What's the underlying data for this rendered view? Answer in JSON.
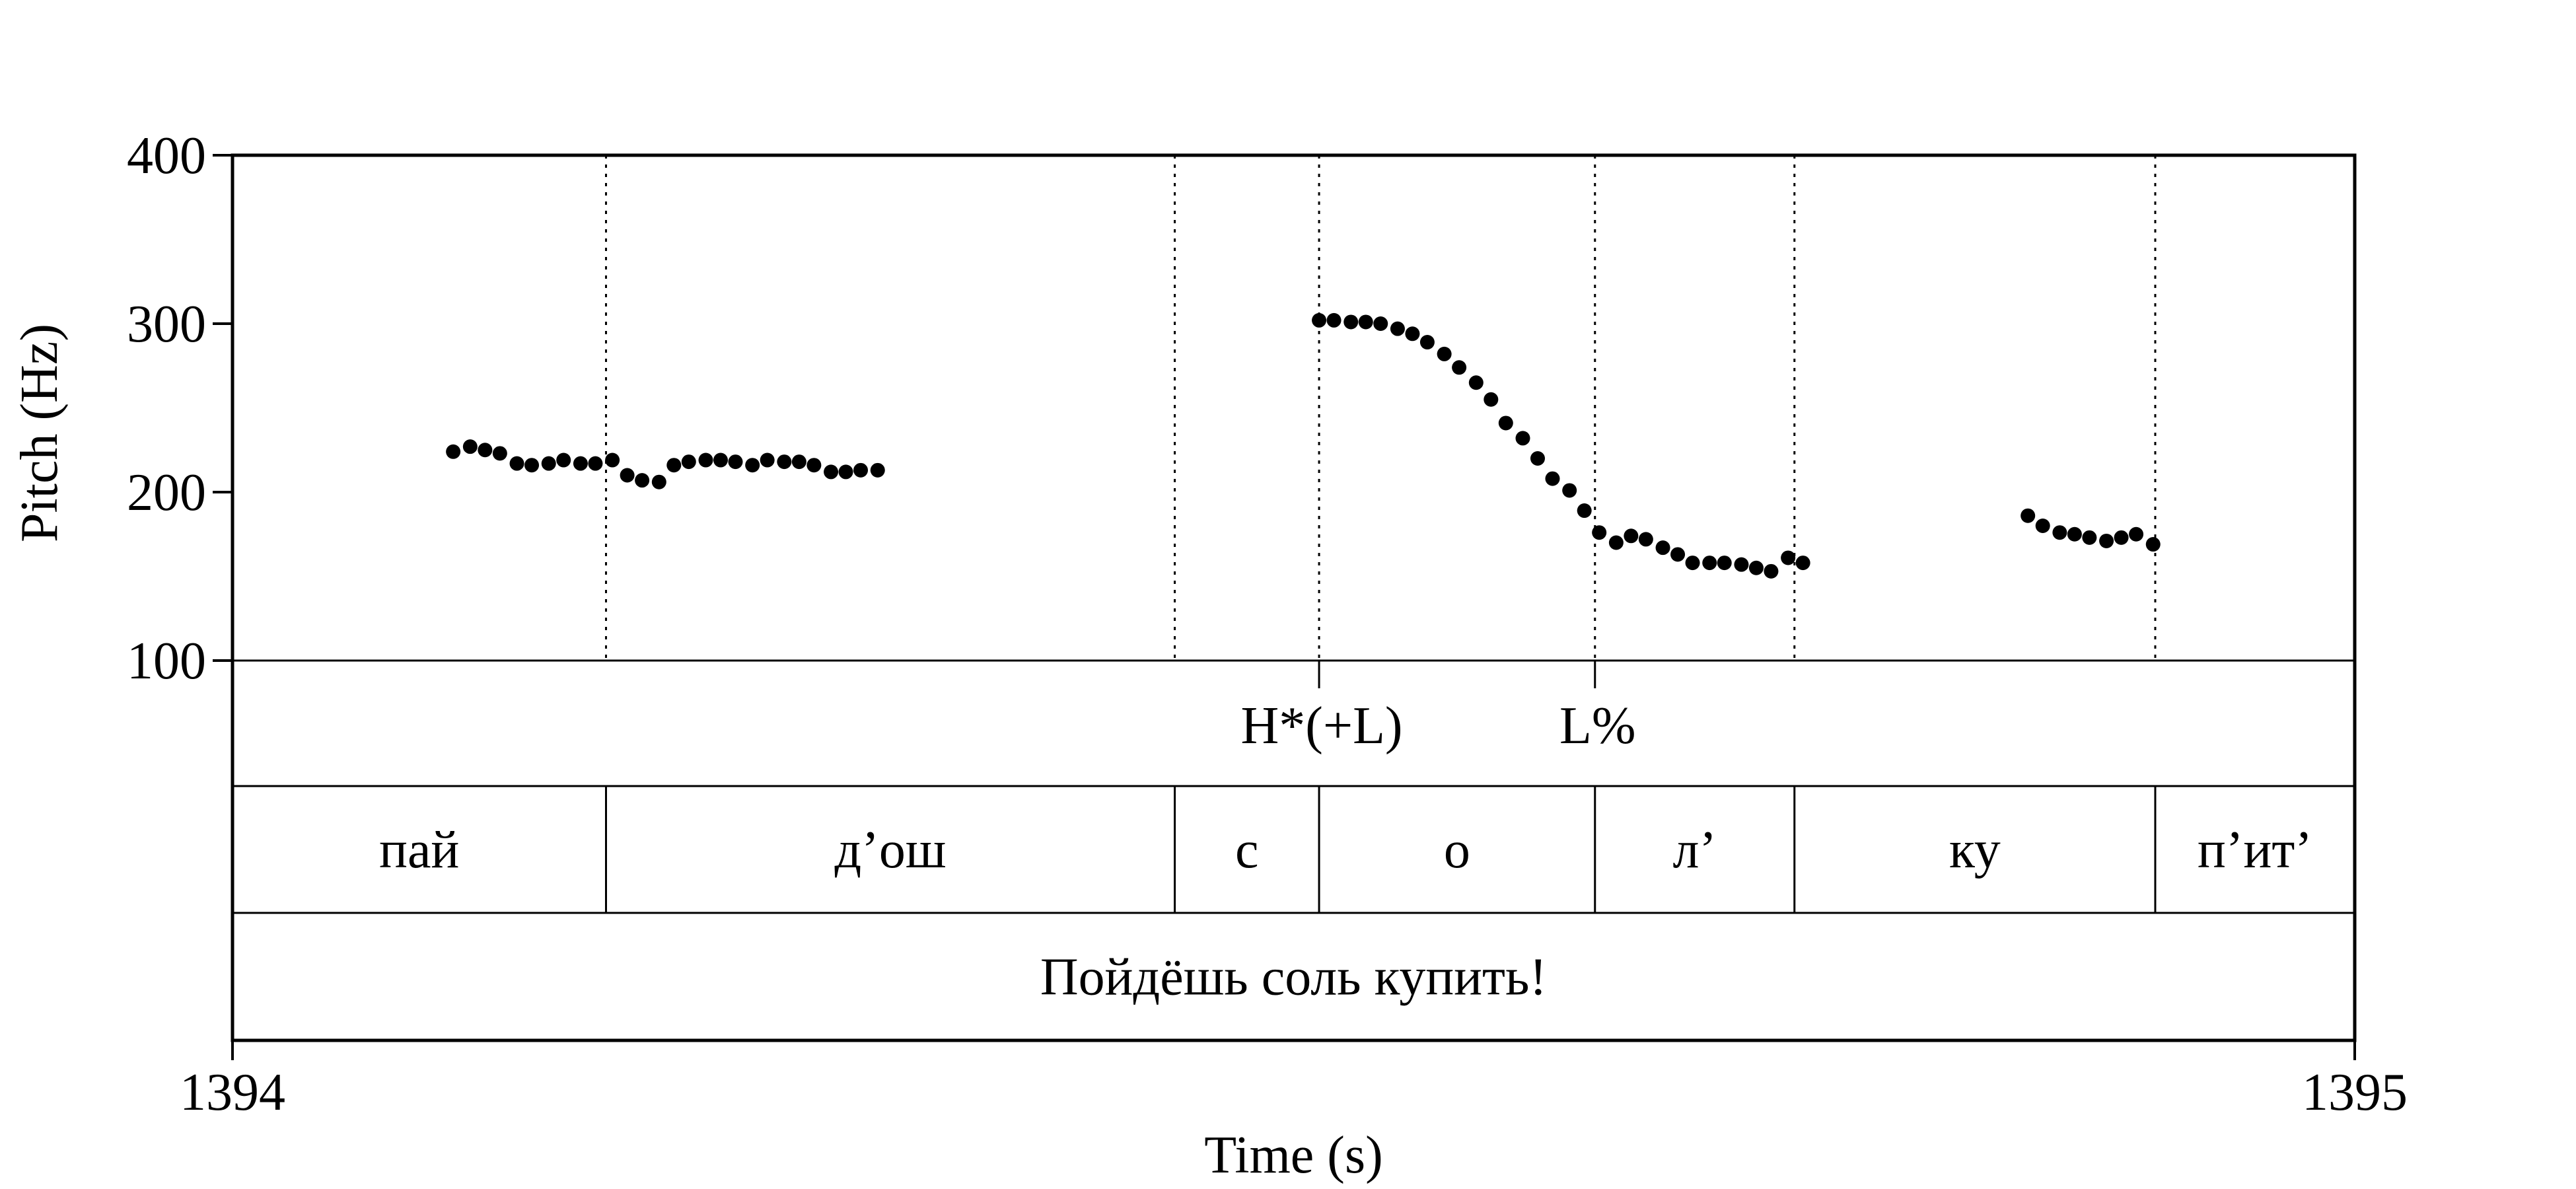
{
  "chart_data": {
    "type": "scatter",
    "xlabel": "Time (s)",
    "ylabel": "Pitch (Hz)",
    "xlim": [
      1394,
      1395
    ],
    "ylim": [
      100,
      400
    ],
    "x_ticks": [
      "1394",
      "1395"
    ],
    "y_ticks": [
      100,
      200,
      300,
      400
    ],
    "series": [
      {
        "values": [
          [
            1394.104,
            224
          ],
          [
            1394.112,
            227
          ],
          [
            1394.119,
            225
          ],
          [
            1394.126,
            223
          ],
          [
            1394.134,
            217
          ],
          [
            1394.141,
            216
          ],
          [
            1394.149,
            217
          ],
          [
            1394.156,
            219
          ],
          [
            1394.164,
            217
          ],
          [
            1394.171,
            217
          ],
          [
            1394.179,
            219
          ],
          [
            1394.186,
            210
          ],
          [
            1394.193,
            207
          ],
          [
            1394.201,
            206
          ],
          [
            1394.208,
            216
          ],
          [
            1394.215,
            218
          ],
          [
            1394.223,
            219
          ],
          [
            1394.23,
            219
          ],
          [
            1394.237,
            218
          ],
          [
            1394.245,
            216
          ],
          [
            1394.252,
            219
          ],
          [
            1394.26,
            218
          ],
          [
            1394.267,
            218
          ],
          [
            1394.274,
            216
          ],
          [
            1394.282,
            212
          ],
          [
            1394.289,
            212
          ],
          [
            1394.296,
            213
          ],
          [
            1394.304,
            213
          ],
          [
            1394.512,
            302
          ],
          [
            1394.519,
            302
          ],
          [
            1394.527,
            301
          ],
          [
            1394.534,
            301
          ],
          [
            1394.541,
            300
          ],
          [
            1394.549,
            297
          ],
          [
            1394.556,
            294
          ],
          [
            1394.563,
            289
          ],
          [
            1394.571,
            282
          ],
          [
            1394.578,
            274
          ],
          [
            1394.586,
            265
          ],
          [
            1394.593,
            255
          ],
          [
            1394.6,
            241
          ],
          [
            1394.608,
            232
          ],
          [
            1394.615,
            220
          ],
          [
            1394.622,
            208
          ],
          [
            1394.63,
            201
          ],
          [
            1394.637,
            189
          ],
          [
            1394.644,
            176
          ],
          [
            1394.652,
            170
          ],
          [
            1394.659,
            174
          ],
          [
            1394.666,
            172
          ],
          [
            1394.674,
            167
          ],
          [
            1394.681,
            163
          ],
          [
            1394.688,
            158
          ],
          [
            1394.696,
            158
          ],
          [
            1394.703,
            158
          ],
          [
            1394.711,
            157
          ],
          [
            1394.718,
            155
          ],
          [
            1394.725,
            153
          ],
          [
            1394.733,
            161
          ],
          [
            1394.74,
            158
          ],
          [
            1394.846,
            186
          ],
          [
            1394.853,
            180
          ],
          [
            1394.861,
            176
          ],
          [
            1394.868,
            175
          ],
          [
            1394.875,
            173
          ],
          [
            1394.883,
            171
          ],
          [
            1394.89,
            173
          ],
          [
            1394.897,
            175
          ],
          [
            1394.905,
            169
          ]
        ]
      }
    ],
    "boundaries": [
      1394.176,
      1394.444,
      1394.512,
      1394.642,
      1394.736,
      1394.906
    ],
    "tones": [
      {
        "label": "H*(+L)",
        "x": 1394.512
      },
      {
        "label": "L%",
        "x": 1394.642
      }
    ],
    "syllables": [
      "пай",
      "д’ош",
      "с",
      "о",
      "л’",
      "ку",
      "п’ит’"
    ],
    "sentence": "Пойдёшь соль купить!"
  }
}
